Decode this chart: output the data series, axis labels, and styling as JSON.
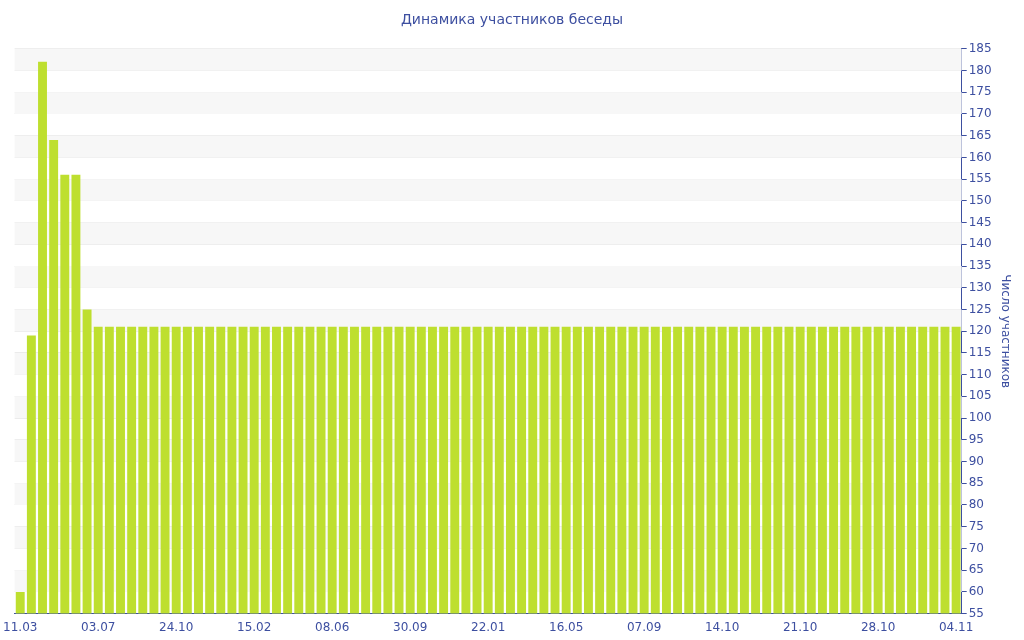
{
  "chart_data": {
    "type": "bar",
    "title": "Динамика участников беседы",
    "ylabel": "Число участников",
    "categories": [
      "11.03",
      null,
      null,
      null,
      null,
      null,
      null,
      "03.07",
      null,
      null,
      null,
      null,
      null,
      null,
      "24.10",
      null,
      null,
      null,
      null,
      null,
      null,
      "15.02",
      null,
      null,
      null,
      null,
      null,
      null,
      "08.06",
      null,
      null,
      null,
      null,
      null,
      null,
      "30.09",
      null,
      null,
      null,
      null,
      null,
      null,
      "22.01",
      null,
      null,
      null,
      null,
      null,
      null,
      "16.05",
      null,
      null,
      null,
      null,
      null,
      null,
      "07.09",
      null,
      null,
      null,
      null,
      null,
      null,
      "14.10",
      null,
      null,
      null,
      null,
      null,
      null,
      "21.10",
      null,
      null,
      null,
      null,
      null,
      null,
      "28.10",
      null,
      null,
      null,
      null,
      null,
      null,
      "04.11"
    ],
    "values": [
      60,
      119,
      182,
      164,
      156,
      156,
      125,
      121,
      121,
      121,
      121,
      121,
      121,
      121,
      121,
      121,
      121,
      121,
      121,
      121,
      121,
      121,
      121,
      121,
      121,
      121,
      121,
      121,
      121,
      121,
      121,
      121,
      121,
      121,
      121,
      121,
      121,
      121,
      121,
      121,
      121,
      121,
      121,
      121,
      121,
      121,
      121,
      121,
      121,
      121,
      121,
      121,
      121,
      121,
      121,
      121,
      121,
      121,
      121,
      121,
      121,
      121,
      121,
      121,
      121,
      121,
      121,
      121,
      121,
      121,
      121,
      121,
      121,
      121,
      121,
      121,
      121,
      121,
      121,
      121,
      121,
      121,
      121,
      121,
      121
    ],
    "color": "#bedf2f",
    "ylim": [
      55,
      185
    ],
    "yticks": [
      55,
      60,
      65,
      70,
      75,
      80,
      85,
      90,
      95,
      100,
      105,
      110,
      115,
      120,
      125,
      130,
      135,
      140,
      145,
      150,
      155,
      160,
      165,
      170,
      175,
      180,
      185
    ],
    "grid": "y",
    "legend": false
  }
}
